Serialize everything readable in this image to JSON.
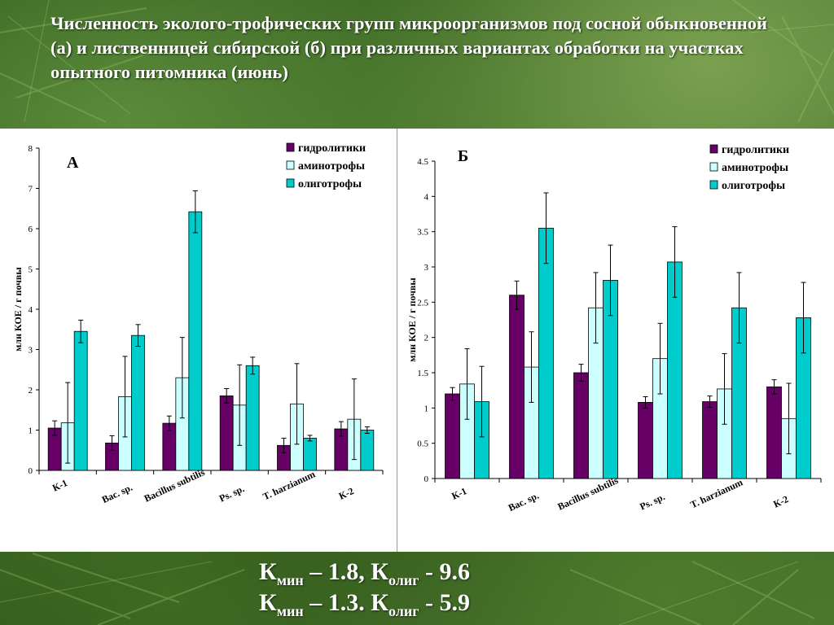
{
  "title": "Численность эколого-трофических групп микроорганизмов под сосной обыкновенной (а) и лиственницей сибирской (б) при различных вариантах обработки  на участках опытного  питомника (июнь)",
  "chart_data": [
    {
      "type": "bar",
      "panel_label": "А",
      "ylabel": "млн КОЕ / г почвы",
      "ylim": [
        0,
        8
      ],
      "yticks": [
        0,
        1,
        2,
        3,
        4,
        5,
        6,
        7,
        8
      ],
      "grid": false,
      "legend_position": "top-right",
      "categories": [
        "К-1",
        "Bac. sp.",
        "Bacillus subtilis",
        "Ps. sp.",
        "T. harzianum",
        "К-2"
      ],
      "series": [
        {
          "name": "гидролитики",
          "color": "#660066",
          "values": [
            1.05,
            0.68,
            1.17,
            1.85,
            0.62,
            1.03
          ],
          "errors": [
            0.18,
            0.18,
            0.18,
            0.18,
            0.18,
            0.18
          ]
        },
        {
          "name": "аминотрофы",
          "color": "#ccffff",
          "values": [
            1.18,
            1.83,
            2.3,
            1.62,
            1.65,
            1.27
          ],
          "errors": [
            1.0,
            1.0,
            1.0,
            1.0,
            1.0,
            1.0
          ]
        },
        {
          "name": "олиготрофы",
          "color": "#00cccc",
          "values": [
            3.45,
            3.35,
            6.42,
            2.6,
            0.8,
            1.0
          ],
          "errors": [
            0.28,
            0.27,
            0.52,
            0.21,
            0.07,
            0.08
          ]
        }
      ]
    },
    {
      "type": "bar",
      "panel_label": "Б",
      "ylabel": "млн КОЕ / г почвы",
      "ylim": [
        0,
        4.5
      ],
      "yticks": [
        0,
        0.5,
        1,
        1.5,
        2,
        2.5,
        3,
        3.5,
        4,
        4.5
      ],
      "grid": false,
      "legend_position": "top-right",
      "categories": [
        "К-1",
        "Bac. sp.",
        "Bacillus subtilis",
        "Ps. sp.",
        "T. harzianum",
        "К-2"
      ],
      "series": [
        {
          "name": "гидролитики",
          "color": "#660066",
          "values": [
            1.2,
            2.6,
            1.5,
            1.08,
            1.09,
            1.3
          ],
          "errors": [
            0.09,
            0.2,
            0.12,
            0.08,
            0.08,
            0.1
          ]
        },
        {
          "name": "аминотрофы",
          "color": "#ccffff",
          "values": [
            1.34,
            1.58,
            2.42,
            1.7,
            1.27,
            0.85
          ],
          "errors": [
            0.5,
            0.5,
            0.5,
            0.5,
            0.5,
            0.5
          ]
        },
        {
          "name": "олиготрофы",
          "color": "#00cccc",
          "values": [
            1.09,
            3.55,
            2.81,
            3.07,
            2.42,
            2.28
          ],
          "errors": [
            0.5,
            0.5,
            0.5,
            0.5,
            0.5,
            0.5
          ]
        }
      ]
    }
  ],
  "footer": {
    "line1": {
      "k1": "К",
      "sub1": "мин",
      "mid": " – 1.8, К",
      "sub2": "олиг",
      "tail": "  - 9.6"
    },
    "line2": {
      "k1": "К",
      "sub1": "мин",
      "mid": " – 1.3. К",
      "sub2": "олиг",
      "tail": "  - 5.9"
    }
  }
}
